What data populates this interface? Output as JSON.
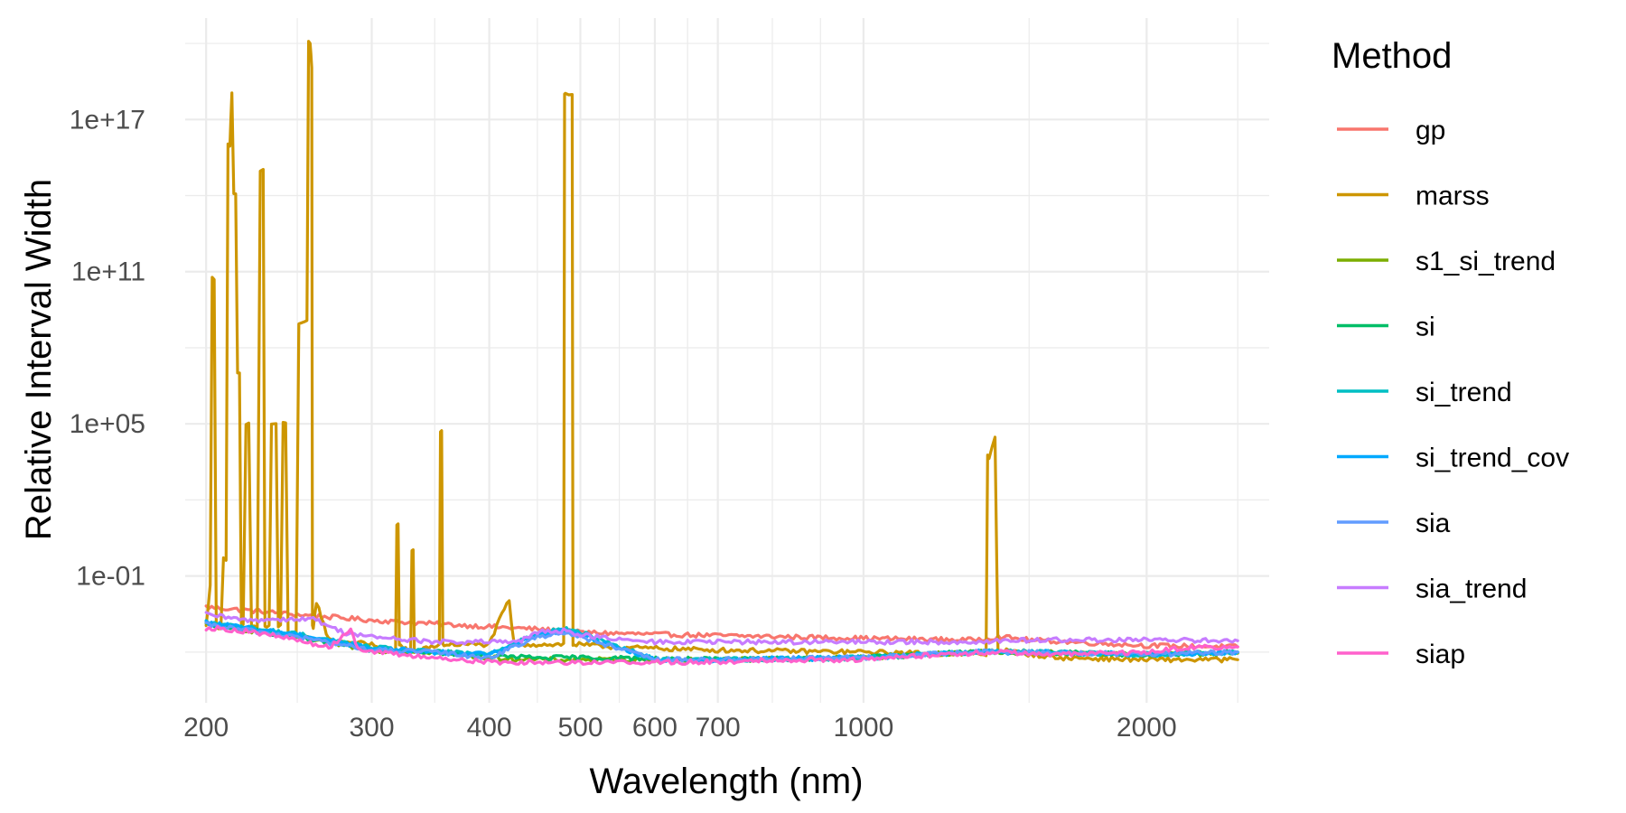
{
  "chart_data": {
    "type": "line",
    "title": "",
    "xlabel": "Wavelength (nm)",
    "ylabel": "Relative Interval Width",
    "x_scale": "log10",
    "y_scale": "log10",
    "xlim": [
      190,
      2700
    ],
    "ylim": [
      1e-06,
      1e+21
    ],
    "x_major_ticks": [
      200,
      300,
      400,
      500,
      600,
      700,
      1000,
      2000
    ],
    "x_tick_labels": [
      "200",
      "300",
      "400",
      "500",
      "600",
      "700",
      "1000",
      "2000"
    ],
    "x_minor_ticks": [
      250,
      350,
      450,
      550,
      650,
      800,
      900,
      1500,
      2500
    ],
    "y_major_ticks": [
      0.1,
      100000.0,
      100000000000.0,
      1e+17
    ],
    "y_tick_labels": [
      "1e-01",
      "1e+05",
      "1e+11",
      "1e+17"
    ],
    "y_minor_ticks": [
      0.0001,
      100.0,
      100000000.0,
      100000000000000.0,
      1e+20
    ],
    "grid": true,
    "legend_title": "Method",
    "legend_position": "right",
    "series": [
      {
        "name": "gp",
        "color": "#F8766D",
        "points": [
          [
            200,
            0.006
          ],
          [
            220,
            0.0045
          ],
          [
            250,
            0.003
          ],
          [
            280,
            0.0022
          ],
          [
            300,
            0.0018
          ],
          [
            350,
            0.0013
          ],
          [
            400,
            0.001
          ],
          [
            450,
            0.0008
          ],
          [
            500,
            0.0006
          ],
          [
            600,
            0.0005
          ],
          [
            700,
            0.00045
          ],
          [
            1000,
            0.00035
          ],
          [
            1300,
            0.0003
          ],
          [
            1400,
            0.0004
          ],
          [
            1500,
            0.0003
          ],
          [
            2000,
            0.00018
          ],
          [
            2500,
            0.00016
          ]
        ]
      },
      {
        "name": "marss",
        "color": "#CD9600",
        "points": [
          [
            200,
            0.001
          ],
          [
            202,
            0.05
          ],
          [
            204,
            50000000000.0
          ],
          [
            206,
            0.001
          ],
          [
            210,
            0.5
          ],
          [
            212,
            1e+16
          ],
          [
            213,
            1e+18
          ],
          [
            215,
            100000000000000.0
          ],
          [
            217,
            10000000.0
          ],
          [
            219,
            0.001
          ],
          [
            222,
            100000.0
          ],
          [
            225,
            0.001
          ],
          [
            230,
            1000000000000000.0
          ],
          [
            232,
            0.001
          ],
          [
            236,
            100000.0
          ],
          [
            240,
            0.001
          ],
          [
            243,
            100000.0
          ],
          [
            246,
            0.0005
          ],
          [
            256,
            1000000000.0
          ],
          [
            258,
            1e+20
          ],
          [
            259,
            1e+19
          ],
          [
            260,
            0.001
          ],
          [
            262,
            0.01
          ],
          [
            270,
            0.0003
          ],
          [
            300,
            0.0002
          ],
          [
            318,
            0.0001
          ],
          [
            320,
            10
          ],
          [
            322,
            0.0002
          ],
          [
            330,
            0.0001
          ],
          [
            332,
            1
          ],
          [
            334,
            0.0001
          ],
          [
            354,
            0.0002
          ],
          [
            356,
            50000.0
          ],
          [
            358,
            0.0002
          ],
          [
            400,
            0.0002
          ],
          [
            415,
            0.005
          ],
          [
            420,
            0.01
          ],
          [
            425,
            0.0002
          ],
          [
            480,
            0.0002
          ],
          [
            482,
            1e+18
          ],
          [
            490,
            1e+18
          ],
          [
            492,
            0.0002
          ],
          [
            560,
            0.00015
          ],
          [
            700,
            0.00012
          ],
          [
            1000,
            0.0001
          ],
          [
            1350,
            8e-05
          ],
          [
            1360,
            5000.0
          ],
          [
            1380,
            30000.0
          ],
          [
            1400,
            0.00012
          ],
          [
            1600,
            6e-05
          ],
          [
            2000,
            5e-05
          ],
          [
            2500,
            5e-05
          ]
        ]
      },
      {
        "name": "s1_si_trend",
        "color": "#7CAE00",
        "points": [
          [
            200,
            0.0012
          ],
          [
            250,
            0.0004
          ],
          [
            300,
            0.00012
          ],
          [
            350,
            0.0001
          ],
          [
            400,
            6e-05
          ],
          [
            450,
            5e-05
          ],
          [
            500,
            5e-05
          ],
          [
            700,
            5e-05
          ],
          [
            1000,
            6e-05
          ],
          [
            1300,
            0.0001
          ],
          [
            1500,
            0.0001
          ],
          [
            2000,
            8e-05
          ],
          [
            2500,
            9e-05
          ]
        ]
      },
      {
        "name": "si",
        "color": "#00BE67",
        "points": [
          [
            200,
            0.0013
          ],
          [
            250,
            0.0004
          ],
          [
            300,
            0.00012
          ],
          [
            350,
            0.0001
          ],
          [
            400,
            7e-05
          ],
          [
            450,
            6e-05
          ],
          [
            500,
            6e-05
          ],
          [
            700,
            5e-05
          ],
          [
            1000,
            6e-05
          ],
          [
            1300,
            0.0001
          ],
          [
            1500,
            0.0001
          ],
          [
            2000,
            8e-05
          ],
          [
            2500,
            0.0001
          ]
        ]
      },
      {
        "name": "si_trend",
        "color": "#00BFC4",
        "points": [
          [
            200,
            0.0015
          ],
          [
            250,
            0.0005
          ],
          [
            300,
            0.00015
          ],
          [
            350,
            0.0001
          ],
          [
            400,
            8e-05
          ],
          [
            450,
            0.0006
          ],
          [
            480,
            0.0008
          ],
          [
            500,
            0.0006
          ],
          [
            600,
            5e-05
          ],
          [
            700,
            5e-05
          ],
          [
            1000,
            6e-05
          ],
          [
            1300,
            0.0001
          ],
          [
            1500,
            0.0001
          ],
          [
            2000,
            8e-05
          ],
          [
            2500,
            0.0001
          ]
        ]
      },
      {
        "name": "si_trend_cov",
        "color": "#00A9FF",
        "points": [
          [
            200,
            0.0014
          ],
          [
            250,
            0.0005
          ],
          [
            300,
            0.00014
          ],
          [
            350,
            0.0001
          ],
          [
            400,
            8e-05
          ],
          [
            450,
            0.0005
          ],
          [
            480,
            0.0007
          ],
          [
            500,
            0.0005
          ],
          [
            600,
            5e-05
          ],
          [
            700,
            5e-05
          ],
          [
            1000,
            6e-05
          ],
          [
            1300,
            0.0001
          ],
          [
            1500,
            0.0001
          ],
          [
            2000,
            8e-05
          ],
          [
            2500,
            0.0001
          ]
        ]
      },
      {
        "name": "sia",
        "color": "#619CFF",
        "points": [
          [
            200,
            0.0012
          ],
          [
            250,
            0.0004
          ],
          [
            300,
            0.00012
          ],
          [
            350,
            0.0001
          ],
          [
            400,
            6e-05
          ],
          [
            450,
            0.0004
          ],
          [
            480,
            0.0006
          ],
          [
            500,
            0.0004
          ],
          [
            600,
            5e-05
          ],
          [
            700,
            5e-05
          ],
          [
            1000,
            6e-05
          ],
          [
            1300,
            0.0001
          ],
          [
            1500,
            0.0001
          ],
          [
            2000,
            8e-05
          ],
          [
            2500,
            0.0001
          ]
        ]
      },
      {
        "name": "sia_trend",
        "color": "#C77CFF",
        "points": [
          [
            200,
            0.003
          ],
          [
            220,
            0.0018
          ],
          [
            240,
            0.002
          ],
          [
            260,
            0.002
          ],
          [
            280,
            0.0006
          ],
          [
            300,
            0.0004
          ],
          [
            350,
            0.00025
          ],
          [
            400,
            0.00025
          ],
          [
            430,
            0.00025
          ],
          [
            450,
            0.0006
          ],
          [
            480,
            0.0007
          ],
          [
            500,
            0.0005
          ],
          [
            550,
            0.0003
          ],
          [
            600,
            0.00025
          ],
          [
            800,
            0.00025
          ],
          [
            1000,
            0.00025
          ],
          [
            1300,
            0.00025
          ],
          [
            1500,
            0.0003
          ],
          [
            2000,
            0.0003
          ],
          [
            2500,
            0.00028
          ]
        ]
      },
      {
        "name": "siap",
        "color": "#FF61CC",
        "points": [
          [
            200,
            0.0009
          ],
          [
            210,
            0.0008
          ],
          [
            225,
            0.0006
          ],
          [
            250,
            0.0003
          ],
          [
            270,
            0.00015
          ],
          [
            285,
            0.0008
          ],
          [
            290,
            0.00015
          ],
          [
            300,
            0.0001
          ],
          [
            350,
            6e-05
          ],
          [
            400,
            4e-05
          ],
          [
            450,
            4e-05
          ],
          [
            500,
            4e-05
          ],
          [
            600,
            4e-05
          ],
          [
            700,
            4e-05
          ],
          [
            800,
            5e-05
          ],
          [
            1000,
            5e-05
          ],
          [
            1200,
            8e-05
          ],
          [
            1400,
            0.0001
          ],
          [
            1600,
            8e-05
          ],
          [
            1800,
            9e-05
          ],
          [
            2000,
            0.0001
          ],
          [
            2200,
            0.00015
          ],
          [
            2500,
            0.00016
          ]
        ]
      }
    ]
  }
}
